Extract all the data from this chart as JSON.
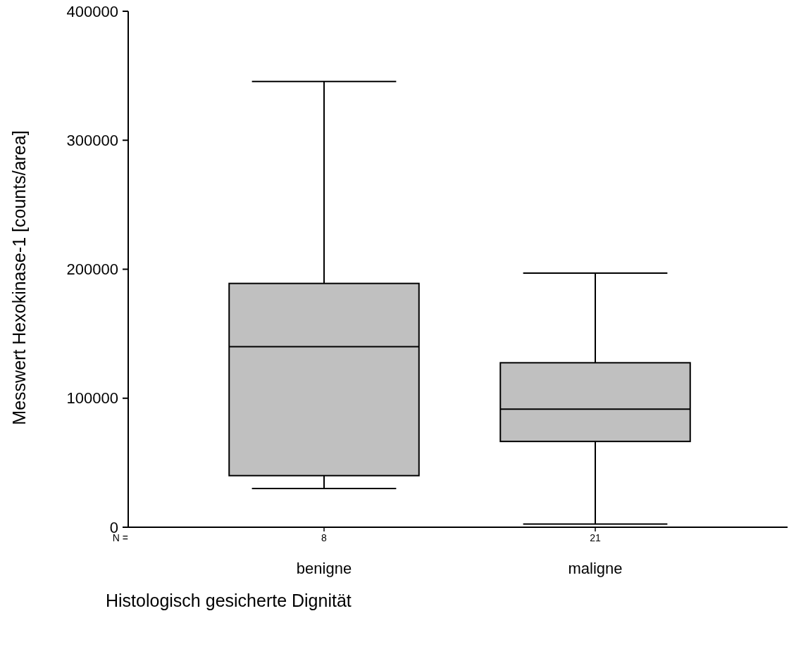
{
  "chart_data": {
    "type": "box",
    "xlabel": "Histologisch gesicherte Dignität",
    "ylabel": "Messwert Hexokinase-1 [counts/area]",
    "categories": [
      "benigne",
      "maligne"
    ],
    "series": [
      {
        "color": "#c0c0c0",
        "boxes": [
          {
            "low": 30000,
            "q1": 40000,
            "median": 140000,
            "q3": 189000,
            "high": 345500
          },
          {
            "low": 2500,
            "q1": 66500,
            "median": 91500,
            "q3": 127500,
            "high": 197000
          }
        ]
      }
    ],
    "ylim": [
      0,
      400000
    ],
    "yticks": [
      0,
      100000,
      200000,
      300000,
      400000
    ],
    "annotations": [
      "N =",
      "8",
      "21"
    ]
  }
}
